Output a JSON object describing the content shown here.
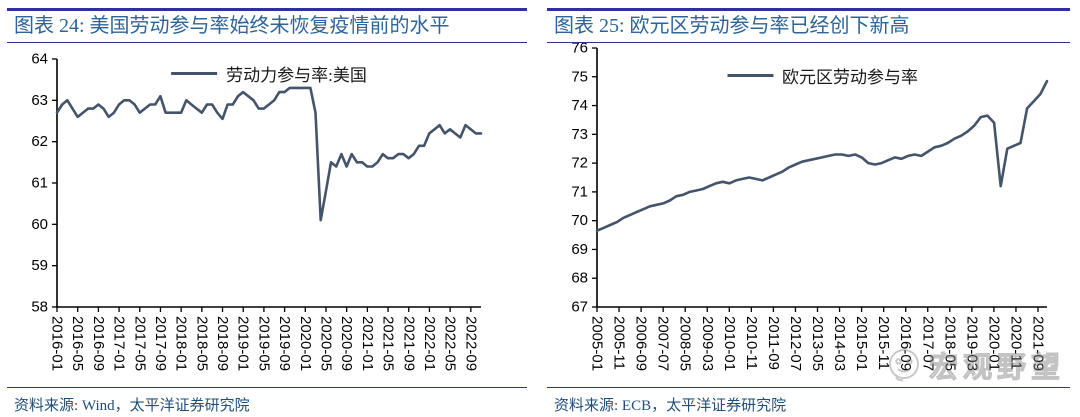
{
  "watermark": {
    "text": "宏观野望"
  },
  "colors": {
    "line": "#44546A",
    "title_text": "#2E6496",
    "divider": "#30309A",
    "source_text": "#1F4E79",
    "axis": "#000000"
  },
  "chart_data": [
    {
      "type": "line",
      "title": "图表 24: 美国劳动参与率始终未恢复疫情前的水平",
      "legend": [
        "劳动力参与率:美国"
      ],
      "legend_position": "top-center",
      "grid": false,
      "xlabel": "",
      "ylabel": "",
      "ylim": [
        58,
        64
      ],
      "y_ticks": [
        58,
        59,
        60,
        61,
        62,
        63,
        64
      ],
      "x_tick_labels": [
        "2016-01",
        "2016-05",
        "2016-09",
        "2017-01",
        "2017-05",
        "2017-09",
        "2018-01",
        "2018-05",
        "2018-09",
        "2019-01",
        "2019-05",
        "2019-09",
        "2020-01",
        "2020-05",
        "2020-09",
        "2021-01",
        "2021-05",
        "2021-09",
        "2022-01",
        "2022-05",
        "2022-09"
      ],
      "frequency": "monthly",
      "x_start": "2016-01",
      "x_end": "2022-11",
      "line_color": "#44546A",
      "series": [
        {
          "name": "劳动力参与率:美国",
          "values": [
            62.7,
            62.9,
            63.0,
            62.8,
            62.6,
            62.7,
            62.8,
            62.8,
            62.9,
            62.8,
            62.6,
            62.7,
            62.9,
            63.0,
            63.0,
            62.9,
            62.7,
            62.8,
            62.9,
            62.9,
            63.1,
            62.7,
            62.7,
            62.7,
            62.7,
            63.0,
            62.9,
            62.8,
            62.7,
            62.9,
            62.9,
            62.7,
            62.55,
            62.9,
            62.9,
            63.1,
            63.2,
            63.1,
            63.0,
            62.8,
            62.8,
            62.9,
            63.0,
            63.2,
            63.2,
            63.3,
            63.3,
            63.3,
            63.3,
            63.3,
            62.7,
            60.1,
            60.8,
            61.5,
            61.4,
            61.7,
            61.4,
            61.7,
            61.5,
            61.5,
            61.4,
            61.4,
            61.5,
            61.7,
            61.6,
            61.6,
            61.7,
            61.7,
            61.6,
            61.7,
            61.9,
            61.9,
            62.2,
            62.3,
            62.4,
            62.2,
            62.3,
            62.2,
            62.1,
            62.4,
            62.3,
            62.2,
            62.2
          ]
        }
      ],
      "source_note": "资料来源:  Wind，太平洋证券研究院"
    },
    {
      "type": "line",
      "title": "图表 25:  欧元区劳动参与率已经创下新高",
      "legend": [
        "欧元区劳动参与率"
      ],
      "legend_position": "top-center",
      "grid": false,
      "xlabel": "",
      "ylabel": "",
      "ylim": [
        67,
        76
      ],
      "y_ticks": [
        67,
        68,
        69,
        70,
        71,
        72,
        73,
        74,
        75,
        76
      ],
      "x_tick_labels": [
        "2005-01",
        "2005-11",
        "2006-09",
        "2007-07",
        "2008-05",
        "2009-03",
        "2010-01",
        "2010-11",
        "2011-09",
        "2012-07",
        "2013-05",
        "2014-03",
        "2015-01",
        "2015-11",
        "2016-09",
        "2017-07",
        "2018-05",
        "2019-03",
        "2020-01",
        "2020-11",
        "2021-09"
      ],
      "frequency": "quarterly",
      "x_start": "2005-01",
      "x_end": "2022-01",
      "line_color": "#44546A",
      "series": [
        {
          "name": "欧元区劳动参与率",
          "values": [
            69.65,
            69.75,
            69.85,
            69.95,
            70.1,
            70.2,
            70.3,
            70.4,
            70.5,
            70.55,
            70.6,
            70.7,
            70.85,
            70.9,
            71.0,
            71.05,
            71.1,
            71.2,
            71.3,
            71.35,
            71.3,
            71.4,
            71.45,
            71.5,
            71.45,
            71.4,
            71.5,
            71.6,
            71.7,
            71.85,
            71.95,
            72.05,
            72.1,
            72.15,
            72.2,
            72.25,
            72.3,
            72.3,
            72.25,
            72.3,
            72.2,
            72.0,
            71.95,
            72.0,
            72.1,
            72.2,
            72.15,
            72.25,
            72.3,
            72.25,
            72.4,
            72.55,
            72.6,
            72.7,
            72.85,
            72.95,
            73.1,
            73.3,
            73.6,
            73.65,
            73.4,
            71.2,
            72.5,
            72.6,
            72.7,
            73.9,
            74.15,
            74.4,
            74.85
          ]
        }
      ],
      "source_note": "资料来源:  ECB，太平洋证券研究院"
    }
  ]
}
